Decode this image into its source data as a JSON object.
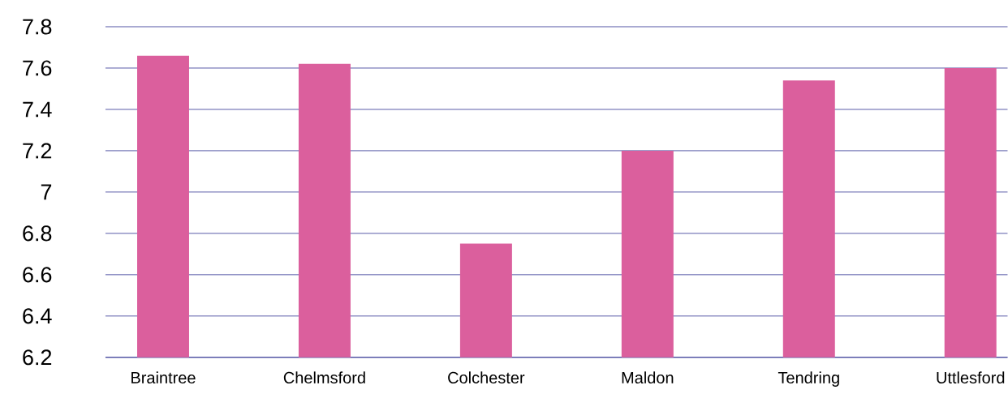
{
  "chart_data": {
    "type": "bar",
    "categories": [
      "Braintree",
      "Chelmsford",
      "Colchester",
      "Maldon",
      "Tendring",
      "Uttlesford"
    ],
    "values": [
      7.66,
      7.62,
      6.75,
      7.2,
      7.54,
      7.6
    ],
    "color": "#db5f9d",
    "ylim": [
      6.2,
      7.8
    ],
    "yticks": [
      6.2,
      6.4,
      6.6,
      6.8,
      7,
      7.2,
      7.4,
      7.6,
      7.8
    ],
    "grid": "y"
  }
}
